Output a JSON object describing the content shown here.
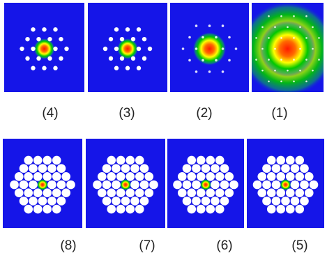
{
  "top_row": [
    {
      "caption": "(4)",
      "mode": "core-small",
      "ring_style": "solid"
    },
    {
      "caption": "(3)",
      "mode": "core-small",
      "ring_style": "solid"
    },
    {
      "caption": "(2)",
      "mode": "core-medium",
      "ring_style": "faint"
    },
    {
      "caption": "(1)",
      "mode": "core-large",
      "ring_style": "faint"
    }
  ],
  "bottom_row": [
    {
      "caption": "(8)",
      "mode": "core-tiny",
      "ring_style": "dense"
    },
    {
      "caption": "(7)",
      "mode": "core-tiny",
      "ring_style": "dense"
    },
    {
      "caption": "(6)",
      "mode": "core-tiny",
      "ring_style": "dense"
    },
    {
      "caption": "(5)",
      "mode": "core-tiny",
      "ring_style": "dense"
    }
  ],
  "colors": {
    "background": "#1515e8",
    "holes": "#ffffff",
    "field_peak": "#ff1a00",
    "field_mid": "#ffff00",
    "field_outer": "#00c800"
  }
}
